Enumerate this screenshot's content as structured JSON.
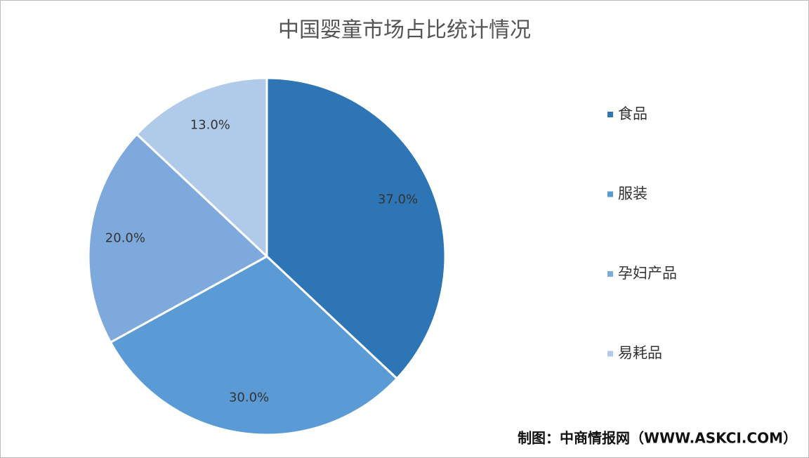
{
  "chart_data": {
    "type": "pie",
    "title": "中国婴童市场占比统计情况",
    "categories": [
      "食品",
      "服装",
      "孕妇产品",
      "易耗品"
    ],
    "values": [
      37,
      30,
      20,
      13
    ],
    "value_labels": [
      "37.0%",
      "30.0%",
      "20.0%",
      "13.0%"
    ],
    "colors": [
      "#2e75b6",
      "#5b9bd5",
      "#7ea9dc",
      "#b0cbea"
    ],
    "legend": "right",
    "source": "制图：中商情报网（WWW.ASKCI.COM）"
  }
}
